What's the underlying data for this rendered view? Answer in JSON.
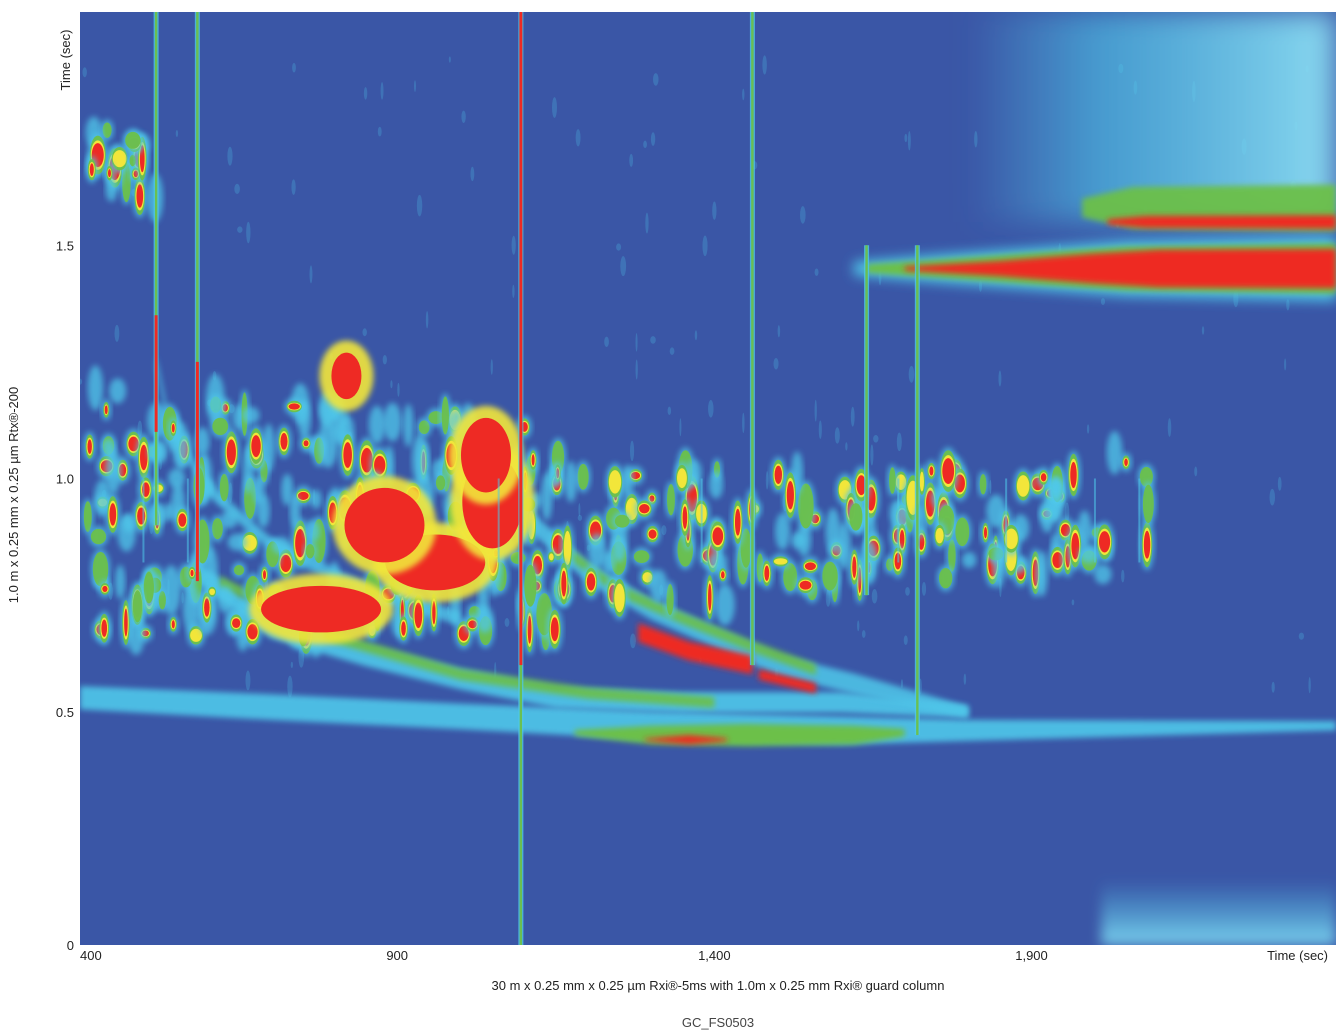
{
  "chart_data": {
    "type": "heatmap",
    "title": "",
    "xlabel": "30 m x 0.25 mm x 0.25 µm Rxi®-5ms with 1.0m x 0.25 mm Rxi® guard column",
    "ylabel": "1.0 m x 0.25 mm x 0.25 µm Rtx®-200",
    "x_unit_label": "Time (sec)",
    "y_unit_label": "Time (sec)",
    "xlim": [
      400,
      2380
    ],
    "ylim": [
      0,
      2.0
    ],
    "x_ticks": [
      400,
      900,
      1400,
      1900
    ],
    "x_tick_labels": [
      "400",
      "900",
      "1,400",
      "1,900"
    ],
    "y_ticks": [
      0,
      0.5,
      1.0,
      1.5
    ],
    "y_tick_labels": [
      "0",
      "0.5",
      "1.0",
      "1.5"
    ],
    "grid": false,
    "colormap": [
      "#3a56a6",
      "#4fc8ea",
      "#6cc04a",
      "#f2e63a",
      "#ee2a24"
    ],
    "bands": [
      {
        "name": "column bleed",
        "x_start": 1620,
        "x_end": 2380,
        "y_center": 1.45,
        "y_width_start": 0.04,
        "y_width_end": 0.12,
        "intensity": "high"
      },
      {
        "name": "upper bleed",
        "x_start": 2020,
        "x_end": 2380,
        "y_center": 1.55,
        "intensity": "high"
      },
      {
        "name": "lower wrap band",
        "x_start": 400,
        "x_end": 1800,
        "y_start": 0.53,
        "y_end": 0.45,
        "intensity": "medium"
      }
    ],
    "streaks": [
      {
        "x": 520,
        "y_min": 0.9,
        "y_max": 2.0
      },
      {
        "x": 585,
        "y_min": 0.8,
        "y_max": 2.0
      },
      {
        "x": 1095,
        "y_min": 0.0,
        "y_max": 2.0
      },
      {
        "x": 1460,
        "y_min": 0.6,
        "y_max": 2.0
      },
      {
        "x": 1640,
        "y_min": 0.75,
        "y_max": 1.5
      },
      {
        "x": 1720,
        "y_min": 0.45,
        "y_max": 1.5
      }
    ],
    "footer_code": "GC_FS0503"
  }
}
